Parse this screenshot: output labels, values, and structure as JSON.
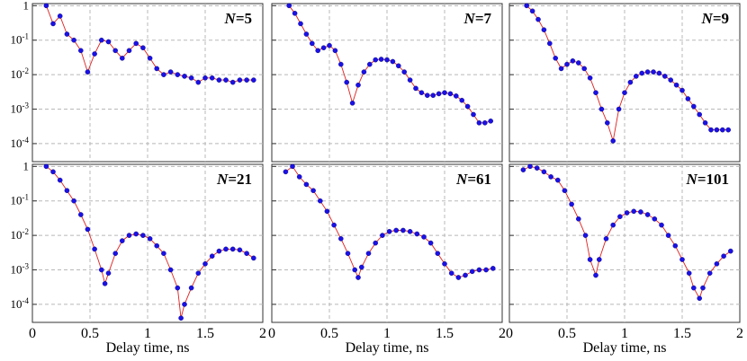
{
  "figure": {
    "xlabel": "Delay time, ns",
    "x_ticks": [
      "0",
      "0.5",
      "1",
      "1.5",
      "2"
    ],
    "y_ticks": [
      {
        "base": "1",
        "exp": ""
      },
      {
        "base": "10",
        "exp": "-1"
      },
      {
        "base": "10",
        "exp": "-2"
      },
      {
        "base": "10",
        "exp": "-3"
      },
      {
        "base": "10",
        "exp": "-4"
      }
    ]
  },
  "chart_data": [
    {
      "type": "scatter",
      "title_var": "N",
      "title_val": "=5",
      "xlim": [
        0,
        2
      ],
      "ylim": [
        3e-05,
        1.2
      ],
      "yscale": "log",
      "grid": true,
      "series": [
        {
          "x": [
            0.12,
            0.18,
            0.24,
            0.3,
            0.36,
            0.42,
            0.48,
            0.54,
            0.6,
            0.66,
            0.72,
            0.78,
            0.84,
            0.9,
            0.96,
            1.02,
            1.08,
            1.14,
            1.2,
            1.26,
            1.32,
            1.38,
            1.44,
            1.5,
            1.56,
            1.62,
            1.68,
            1.74,
            1.8,
            1.86,
            1.92
          ],
          "y": [
            1.0,
            0.3,
            0.5,
            0.15,
            0.1,
            0.05,
            0.012,
            0.04,
            0.1,
            0.09,
            0.05,
            0.03,
            0.05,
            0.08,
            0.06,
            0.03,
            0.015,
            0.01,
            0.012,
            0.01,
            0.009,
            0.008,
            0.006,
            0.008,
            0.008,
            0.007,
            0.007,
            0.006,
            0.007,
            0.007,
            0.007
          ]
        }
      ]
    },
    {
      "type": "scatter",
      "title_var": "N",
      "title_val": "=7",
      "xlim": [
        0,
        2
      ],
      "ylim": [
        3e-05,
        1.2
      ],
      "yscale": "log",
      "grid": true,
      "series": [
        {
          "x": [
            0.15,
            0.2,
            0.25,
            0.3,
            0.35,
            0.4,
            0.45,
            0.5,
            0.55,
            0.6,
            0.65,
            0.7,
            0.75,
            0.8,
            0.85,
            0.9,
            0.95,
            1.0,
            1.05,
            1.1,
            1.15,
            1.2,
            1.25,
            1.3,
            1.35,
            1.4,
            1.45,
            1.5,
            1.55,
            1.6,
            1.65,
            1.7,
            1.75,
            1.8,
            1.85,
            1.9
          ],
          "y": [
            1.0,
            0.6,
            0.3,
            0.15,
            0.08,
            0.05,
            0.06,
            0.07,
            0.05,
            0.02,
            0.006,
            0.0015,
            0.005,
            0.012,
            0.02,
            0.027,
            0.028,
            0.027,
            0.024,
            0.018,
            0.012,
            0.007,
            0.004,
            0.003,
            0.0025,
            0.0025,
            0.0028,
            0.003,
            0.0028,
            0.0024,
            0.0018,
            0.0012,
            0.0007,
            0.0004,
            0.0004,
            0.00045
          ]
        }
      ]
    },
    {
      "type": "scatter",
      "title_var": "N",
      "title_val": "=9",
      "xlim": [
        0,
        2
      ],
      "ylim": [
        3e-05,
        1.2
      ],
      "yscale": "log",
      "grid": true,
      "series": [
        {
          "x": [
            0.15,
            0.2,
            0.25,
            0.3,
            0.35,
            0.4,
            0.45,
            0.5,
            0.55,
            0.6,
            0.65,
            0.7,
            0.75,
            0.8,
            0.85,
            0.9,
            0.95,
            1.0,
            1.05,
            1.1,
            1.15,
            1.2,
            1.25,
            1.3,
            1.35,
            1.4,
            1.45,
            1.5,
            1.55,
            1.6,
            1.65,
            1.7,
            1.75,
            1.8,
            1.85,
            1.9
          ],
          "y": [
            1.0,
            0.7,
            0.4,
            0.2,
            0.08,
            0.03,
            0.015,
            0.02,
            0.025,
            0.022,
            0.015,
            0.008,
            0.003,
            0.001,
            0.0004,
            0.00012,
            0.001,
            0.003,
            0.006,
            0.009,
            0.011,
            0.012,
            0.012,
            0.011,
            0.009,
            0.007,
            0.005,
            0.0035,
            0.002,
            0.0012,
            0.0007,
            0.0004,
            0.00025,
            0.00025,
            0.00025,
            0.00025
          ]
        }
      ]
    },
    {
      "type": "scatter",
      "title_var": "N",
      "title_val": "=21",
      "xlim": [
        0,
        2
      ],
      "ylim": [
        3e-05,
        1.2
      ],
      "yscale": "log",
      "grid": true,
      "series": [
        {
          "x": [
            0.12,
            0.18,
            0.24,
            0.3,
            0.36,
            0.42,
            0.48,
            0.54,
            0.6,
            0.63,
            0.66,
            0.72,
            0.78,
            0.84,
            0.9,
            0.96,
            1.02,
            1.08,
            1.14,
            1.2,
            1.26,
            1.29,
            1.32,
            1.38,
            1.44,
            1.5,
            1.56,
            1.62,
            1.68,
            1.74,
            1.8,
            1.86,
            1.92
          ],
          "y": [
            1.0,
            0.7,
            0.4,
            0.2,
            0.1,
            0.04,
            0.015,
            0.004,
            0.001,
            0.0004,
            0.0008,
            0.003,
            0.007,
            0.01,
            0.011,
            0.01,
            0.008,
            0.005,
            0.003,
            0.001,
            0.0003,
            4e-05,
            0.0001,
            0.0003,
            0.0008,
            0.0015,
            0.0025,
            0.0035,
            0.004,
            0.004,
            0.0038,
            0.003,
            0.0022
          ]
        }
      ]
    },
    {
      "type": "scatter",
      "title_var": "N",
      "title_val": "=61",
      "xlim": [
        0,
        2
      ],
      "ylim": [
        3e-05,
        1.2
      ],
      "yscale": "log",
      "grid": true,
      "series": [
        {
          "x": [
            0.12,
            0.18,
            0.24,
            0.3,
            0.36,
            0.42,
            0.48,
            0.54,
            0.6,
            0.66,
            0.72,
            0.75,
            0.78,
            0.84,
            0.9,
            0.96,
            1.02,
            1.08,
            1.14,
            1.2,
            1.26,
            1.32,
            1.38,
            1.44,
            1.5,
            1.56,
            1.62,
            1.68,
            1.74,
            1.8,
            1.86,
            1.92
          ],
          "y": [
            0.7,
            1.0,
            0.5,
            0.3,
            0.2,
            0.1,
            0.05,
            0.02,
            0.008,
            0.003,
            0.001,
            0.0006,
            0.0012,
            0.003,
            0.006,
            0.01,
            0.013,
            0.014,
            0.014,
            0.013,
            0.011,
            0.009,
            0.006,
            0.003,
            0.0015,
            0.0008,
            0.0006,
            0.0007,
            0.0009,
            0.001,
            0.001,
            0.0011
          ]
        }
      ]
    },
    {
      "type": "scatter",
      "title_var": "N",
      "title_val": "=101",
      "xlim": [
        0,
        2
      ],
      "ylim": [
        3e-05,
        1.2
      ],
      "yscale": "log",
      "grid": true,
      "series": [
        {
          "x": [
            0.12,
            0.18,
            0.24,
            0.3,
            0.36,
            0.42,
            0.48,
            0.54,
            0.6,
            0.66,
            0.7,
            0.75,
            0.78,
            0.84,
            0.9,
            0.96,
            1.02,
            1.08,
            1.14,
            1.2,
            1.26,
            1.32,
            1.38,
            1.44,
            1.5,
            1.56,
            1.6,
            1.65,
            1.68,
            1.74,
            1.8,
            1.86,
            1.92
          ],
          "y": [
            0.8,
            1.0,
            0.9,
            0.7,
            0.5,
            0.4,
            0.2,
            0.08,
            0.03,
            0.01,
            0.002,
            0.0007,
            0.002,
            0.008,
            0.02,
            0.035,
            0.045,
            0.05,
            0.048,
            0.04,
            0.03,
            0.02,
            0.01,
            0.005,
            0.002,
            0.0008,
            0.0003,
            0.00015,
            0.0003,
            0.0008,
            0.0015,
            0.0025,
            0.0035
          ]
        }
      ]
    }
  ]
}
